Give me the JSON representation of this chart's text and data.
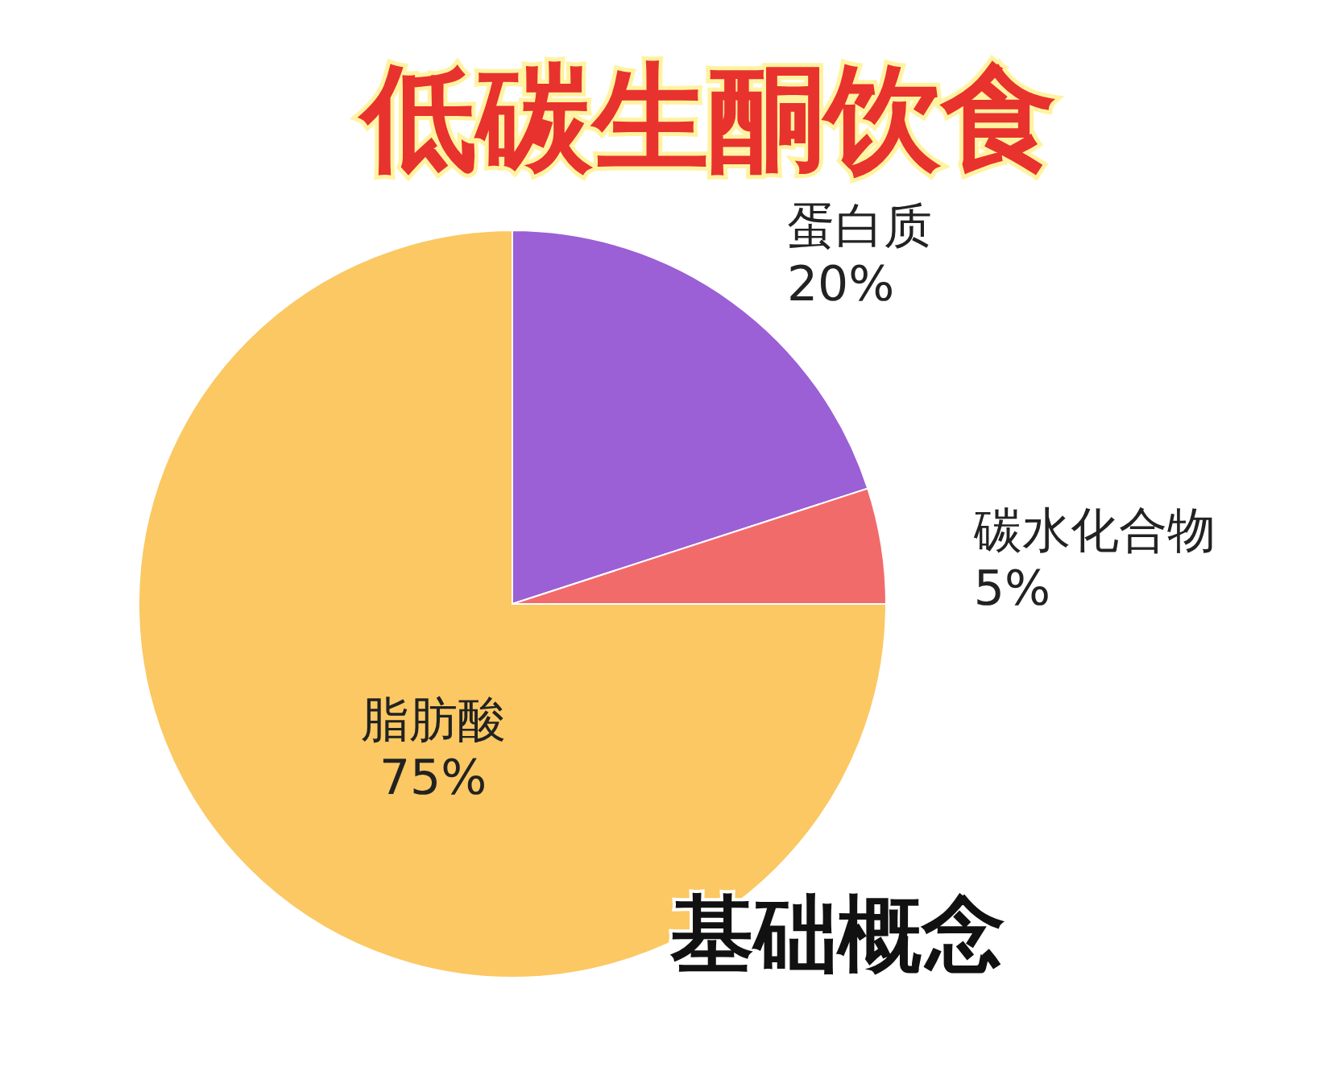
{
  "chart_data": {
    "type": "pie",
    "title": "低碳生酮饮食",
    "subtitle": "基础概念",
    "categories": [
      "蛋白质",
      "碳水化合物",
      "脂肪酸"
    ],
    "values": [
      20,
      5,
      75
    ],
    "value_labels": [
      "20%",
      "5%",
      "75%"
    ],
    "colors": [
      "#9b5fd6",
      "#f26b6b",
      "#fbc863"
    ]
  }
}
